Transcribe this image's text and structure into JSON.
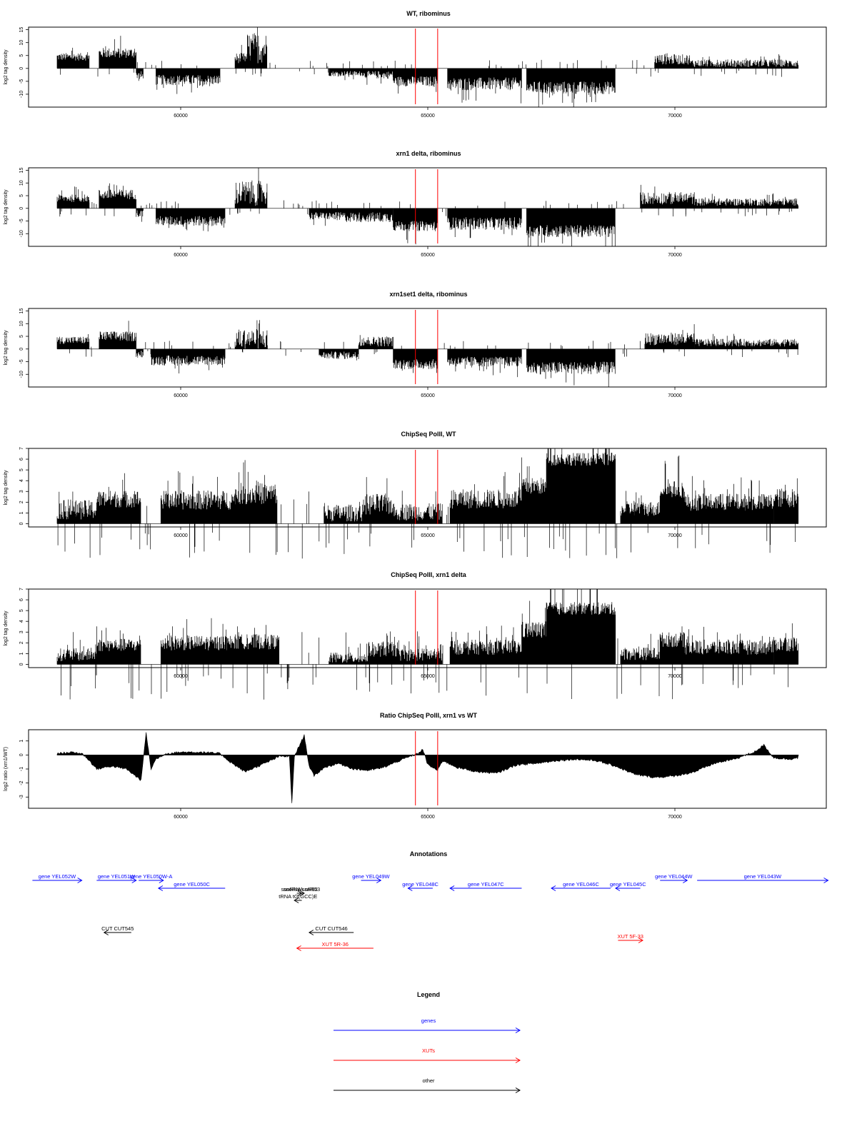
{
  "chart_data": [
    {
      "type": "bar",
      "id": "p1",
      "title": "WT, ribominus",
      "ylabel": "log2 tag density",
      "ylim": [
        -15,
        16
      ],
      "yticks": [
        -10,
        -5,
        0,
        5,
        10,
        15
      ],
      "xlim": [
        57200,
        72800
      ],
      "xticks": [
        60000,
        65000,
        70000
      ],
      "markers_x": [
        64750,
        65200
      ],
      "segments": [
        {
          "x": [
            57500,
            58150
          ],
          "value": 4.5,
          "amp": 1.5
        },
        {
          "x": [
            58350,
            59100
          ],
          "value": 6,
          "amp": 2
        },
        {
          "x": [
            59100,
            59250
          ],
          "value": -3,
          "amp": 2
        },
        {
          "x": [
            59500,
            60800
          ],
          "value": -4.5,
          "amp": 2
        },
        {
          "x": [
            61100,
            61550
          ],
          "value": 4,
          "amp": 2
        },
        {
          "x": [
            61350,
            61750
          ],
          "value": 8,
          "amp": 6
        },
        {
          "x": [
            63000,
            63700
          ],
          "value": -2,
          "amp": 1
        },
        {
          "x": [
            63700,
            64300
          ],
          "value": -2.5,
          "amp": 1.5
        },
        {
          "x": [
            64300,
            65200
          ],
          "value": -5,
          "amp": 2
        },
        {
          "x": [
            65400,
            66900
          ],
          "value": -6,
          "amp": 2.5
        },
        {
          "x": [
            67000,
            68800
          ],
          "value": -7.5,
          "amp": 2.5
        },
        {
          "x": [
            69600,
            70300
          ],
          "value": 3.5,
          "amp": 2
        },
        {
          "x": [
            70300,
            72500
          ],
          "value": 2,
          "amp": 1.5
        }
      ]
    },
    {
      "type": "bar",
      "id": "p2",
      "title": "xrn1 delta, ribominus",
      "ylabel": "log2 tag density",
      "ylim": [
        -15,
        16
      ],
      "yticks": [
        -10,
        -5,
        0,
        5,
        10,
        15
      ],
      "xlim": [
        57200,
        72800
      ],
      "xticks": [
        60000,
        65000,
        70000
      ],
      "markers_x": [
        64750,
        65200
      ],
      "segments": [
        {
          "x": [
            57500,
            58150
          ],
          "value": 4,
          "amp": 1.5
        },
        {
          "x": [
            58350,
            59100
          ],
          "value": 5.5,
          "amp": 2
        },
        {
          "x": [
            59100,
            59250
          ],
          "value": -2,
          "amp": 1.5
        },
        {
          "x": [
            59500,
            60900
          ],
          "value": -5,
          "amp": 2
        },
        {
          "x": [
            61100,
            61750
          ],
          "value": 6,
          "amp": 5
        },
        {
          "x": [
            62600,
            63300
          ],
          "value": -3,
          "amp": 1.5
        },
        {
          "x": [
            63300,
            64300
          ],
          "value": -3.5,
          "amp": 2
        },
        {
          "x": [
            64300,
            65200
          ],
          "value": -7,
          "amp": 2
        },
        {
          "x": [
            65400,
            66900
          ],
          "value": -6,
          "amp": 2.5
        },
        {
          "x": [
            67000,
            68800
          ],
          "value": -9,
          "amp": 2.5
        },
        {
          "x": [
            69300,
            70400
          ],
          "value": 4,
          "amp": 2.5
        },
        {
          "x": [
            70400,
            72500
          ],
          "value": 2.5,
          "amp": 1.5
        }
      ]
    },
    {
      "type": "bar",
      "id": "p3",
      "title": "xrn1set1 delta, ribominus",
      "ylabel": "log2 tag density",
      "ylim": [
        -15,
        16
      ],
      "yticks": [
        -10,
        -5,
        0,
        5,
        10,
        15
      ],
      "xlim": [
        57200,
        72800
      ],
      "xticks": [
        60000,
        65000,
        70000
      ],
      "markers_x": [
        64750,
        65200
      ],
      "segments": [
        {
          "x": [
            57500,
            58150
          ],
          "value": 3.5,
          "amp": 1.5
        },
        {
          "x": [
            58350,
            59100
          ],
          "value": 5,
          "amp": 2
        },
        {
          "x": [
            59100,
            59250
          ],
          "value": -2,
          "amp": 1.5
        },
        {
          "x": [
            59400,
            60900
          ],
          "value": -4.5,
          "amp": 2
        },
        {
          "x": [
            61100,
            61750
          ],
          "value": 4,
          "amp": 4
        },
        {
          "x": [
            62800,
            63600
          ],
          "value": -2.5,
          "amp": 1.5
        },
        {
          "x": [
            63600,
            64300
          ],
          "value": 3,
          "amp": 2
        },
        {
          "x": [
            64300,
            65200
          ],
          "value": -6,
          "amp": 2
        },
        {
          "x": [
            65400,
            66900
          ],
          "value": -5,
          "amp": 2
        },
        {
          "x": [
            67000,
            68800
          ],
          "value": -7.5,
          "amp": 2.5
        },
        {
          "x": [
            69400,
            70400
          ],
          "value": 4,
          "amp": 2.5
        },
        {
          "x": [
            70400,
            72500
          ],
          "value": 2.5,
          "amp": 1.5
        }
      ]
    },
    {
      "type": "bar",
      "id": "p4",
      "title": "ChipSeq PolII, WT",
      "ylabel": "log2 tag density",
      "ylim": [
        -0.3,
        7
      ],
      "yticks": [
        0,
        1,
        2,
        3,
        4,
        5,
        6,
        7
      ],
      "xlim": [
        57200,
        72800
      ],
      "xticks": [
        60000,
        65000,
        70000
      ],
      "markers_x": [
        64750,
        65200
      ],
      "segments": [
        {
          "x": [
            57500,
            58300
          ],
          "value": 1.3,
          "amp": 0.9
        },
        {
          "x": [
            58300,
            59200
          ],
          "value": 2.3,
          "amp": 0.8
        },
        {
          "x": [
            59600,
            61100
          ],
          "value": 2.2,
          "amp": 0.9
        },
        {
          "x": [
            61100,
            61950
          ],
          "value": 2.8,
          "amp": 1
        },
        {
          "x": [
            62900,
            63700
          ],
          "value": 1,
          "amp": 0.8
        },
        {
          "x": [
            63700,
            64300
          ],
          "value": 1.8,
          "amp": 1
        },
        {
          "x": [
            64300,
            65300
          ],
          "value": 1.1,
          "amp": 0.8
        },
        {
          "x": [
            65450,
            66900
          ],
          "value": 2.3,
          "amp": 0.9
        },
        {
          "x": [
            66900,
            67400
          ],
          "value": 3.5,
          "amp": 0.8
        },
        {
          "x": [
            67400,
            68800
          ],
          "value": 6,
          "amp": 0.6
        },
        {
          "x": [
            68900,
            69700
          ],
          "value": 1.4,
          "amp": 0.7
        },
        {
          "x": [
            69700,
            70200
          ],
          "value": 3.2,
          "amp": 0.8
        },
        {
          "x": [
            70200,
            72000
          ],
          "value": 2,
          "amp": 0.8
        },
        {
          "x": [
            72000,
            72500
          ],
          "value": 2.4,
          "amp": 0.9
        }
      ]
    },
    {
      "type": "bar",
      "id": "p5",
      "title": "ChipSeq PolII, xrn1 delta",
      "ylabel": "log2 tag density",
      "ylim": [
        -0.3,
        7
      ],
      "yticks": [
        0,
        1,
        2,
        3,
        4,
        5,
        6,
        7
      ],
      "xlim": [
        57200,
        72800
      ],
      "xticks": [
        60000,
        65000,
        70000
      ],
      "markers_x": [
        64750,
        65200
      ],
      "segments": [
        {
          "x": [
            57500,
            58300
          ],
          "value": 0.9,
          "amp": 0.6
        },
        {
          "x": [
            58300,
            59200
          ],
          "value": 1.8,
          "amp": 0.6
        },
        {
          "x": [
            59600,
            61100
          ],
          "value": 2,
          "amp": 0.7
        },
        {
          "x": [
            61100,
            62000
          ],
          "value": 2.1,
          "amp": 0.7
        },
        {
          "x": [
            63000,
            63800
          ],
          "value": 0.6,
          "amp": 0.5
        },
        {
          "x": [
            63800,
            64400
          ],
          "value": 1.4,
          "amp": 0.7
        },
        {
          "x": [
            64400,
            65300
          ],
          "value": 0.9,
          "amp": 0.6
        },
        {
          "x": [
            65450,
            66900
          ],
          "value": 1.6,
          "amp": 0.7
        },
        {
          "x": [
            66900,
            67400
          ],
          "value": 3.2,
          "amp": 0.8
        },
        {
          "x": [
            67400,
            68800
          ],
          "value": 5.2,
          "amp": 0.6
        },
        {
          "x": [
            68900,
            69700
          ],
          "value": 1,
          "amp": 0.6
        },
        {
          "x": [
            69700,
            70200
          ],
          "value": 2.3,
          "amp": 0.7
        },
        {
          "x": [
            70200,
            72000
          ],
          "value": 1.6,
          "amp": 0.7
        },
        {
          "x": [
            72000,
            72500
          ],
          "value": 1.9,
          "amp": 0.7
        }
      ]
    },
    {
      "type": "area",
      "id": "p6",
      "title": "Ratio ChipSeq PolII, xrn1 vs WT",
      "ylabel": "log2 ratio (xrn1/WT)",
      "ylim": [
        -3.8,
        1.8
      ],
      "yticks": [
        -3,
        -2,
        -1,
        0,
        1
      ],
      "xlim": [
        57200,
        72800
      ],
      "xticks": [
        60000,
        65000,
        70000
      ],
      "markers_x": [
        64750,
        65200
      ],
      "x": [
        57500,
        57800,
        58000,
        58100,
        58300,
        58600,
        58900,
        59200,
        59300,
        59400,
        59500,
        59700,
        60000,
        60400,
        60800,
        61000,
        61300,
        61700,
        62000,
        62200,
        62250,
        62300,
        62500,
        62600,
        62700,
        62900,
        63200,
        63500,
        63800,
        64100,
        64500,
        64800,
        64900,
        65000,
        65200,
        65300,
        65600,
        66000,
        66400,
        66800,
        67200,
        67600,
        68000,
        68400,
        68800,
        69200,
        69600,
        70000,
        70400,
        70800,
        71200,
        71600,
        71800,
        72000,
        72300,
        72500
      ],
      "y": [
        0.1,
        0.2,
        0.1,
        -0.2,
        -1.0,
        -0.8,
        -1.0,
        -1.8,
        1.6,
        -1.0,
        -0.3,
        0.1,
        0.2,
        0.2,
        0.1,
        -0.5,
        -1.2,
        -0.6,
        -0.1,
        -0.1,
        -3.5,
        -0.1,
        1.4,
        -0.8,
        -1.5,
        -0.9,
        -0.6,
        -1.0,
        -1.1,
        -0.9,
        -0.3,
        0.1,
        0.4,
        -0.7,
        -1.1,
        -0.4,
        -0.9,
        -1.2,
        -1.3,
        -0.7,
        -0.6,
        -0.4,
        -0.3,
        -0.4,
        -0.8,
        -1.4,
        -1.6,
        -1.5,
        -1.2,
        -0.6,
        -0.3,
        0.2,
        0.7,
        -0.2,
        -0.3,
        -0.2
      ]
    }
  ],
  "annotations": {
    "title": "Annotations",
    "items": [
      {
        "label": "gene YEL052W",
        "color": "#0000ff",
        "from": 57000,
        "to": 58000
      },
      {
        "label": "gene YEL051W",
        "color": "#0000ff",
        "from": 58300,
        "to": 59100
      },
      {
        "label": "gene YEL050W-A",
        "color": "#0000ff",
        "from": 59150,
        "to": 59650
      },
      {
        "label": "gene YEL050C",
        "color": "#0000ff",
        "from": 60900,
        "to": 59550
      },
      {
        "label": "snoRNA snR52",
        "color": "#000000",
        "from": 62350,
        "to": 62450
      },
      {
        "label": "snoRNA snR53",
        "color": "#000000",
        "from": 62400,
        "to": 62500
      },
      {
        "label": "tRNA tG(GCC)E",
        "color": "#000000",
        "from": 62450,
        "to": 62300
      },
      {
        "label": "gene YEL049W",
        "color": "#0000ff",
        "from": 63650,
        "to": 64050
      },
      {
        "label": "gene YEL048C",
        "color": "#0000ff",
        "from": 65100,
        "to": 64600
      },
      {
        "label": "gene YEL047C",
        "color": "#0000ff",
        "from": 66900,
        "to": 65450
      },
      {
        "label": "gene YEL046C",
        "color": "#0000ff",
        "from": 68700,
        "to": 67500
      },
      {
        "label": "gene YEL045C",
        "color": "#0000ff",
        "from": 69300,
        "to": 68800
      },
      {
        "label": "gene YEL044W",
        "color": "#0000ff",
        "from": 69700,
        "to": 70250
      },
      {
        "label": "gene YEL043W",
        "color": "#0000ff",
        "from": 70450,
        "to": 73100
      },
      {
        "label": "CUT CUT545",
        "color": "#000000",
        "from": 59000,
        "to": 58450
      },
      {
        "label": "CUT CUT546",
        "color": "#000000",
        "from": 63500,
        "to": 62600
      },
      {
        "label": "XUT 5R-36",
        "color": "#ff0000",
        "from": 63900,
        "to": 62350
      },
      {
        "label": "XUT 5F-33",
        "color": "#ff0000",
        "from": 68850,
        "to": 69350
      }
    ]
  },
  "legend": {
    "title": "Legend",
    "items": [
      {
        "label": "genes",
        "color": "#0000ff"
      },
      {
        "label": "XUTs",
        "color": "#ff0000"
      },
      {
        "label": "other",
        "color": "#000000"
      }
    ]
  }
}
